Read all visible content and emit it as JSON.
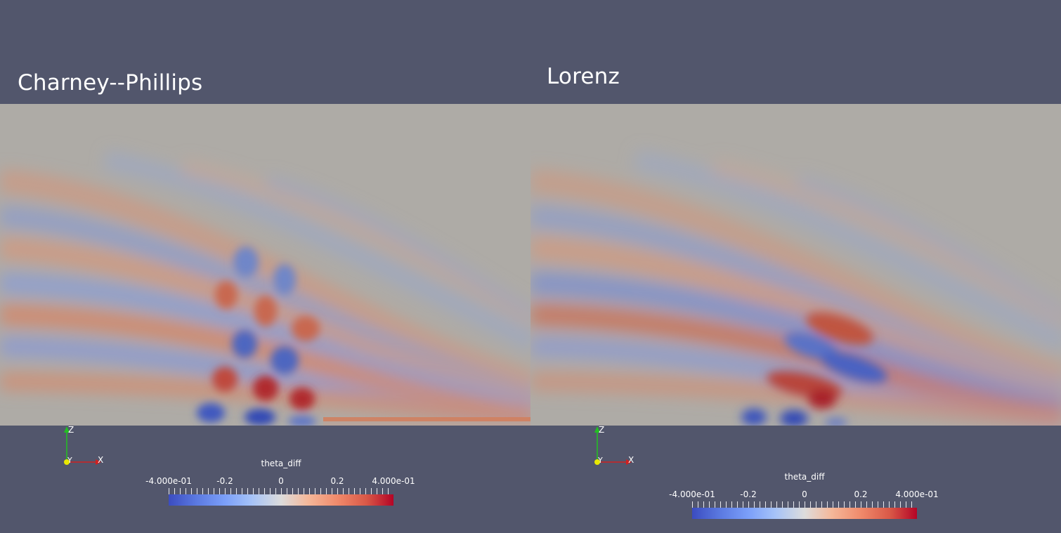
{
  "views": [
    {
      "title": "Charney--Phillips",
      "colorbar": {
        "title": "theta_diff",
        "tick_labels": [
          "-4.000e-01",
          "-0.2",
          "0",
          "0.2",
          "4.000e-01"
        ],
        "range": [
          -0.4,
          0.4
        ]
      },
      "axes": {
        "x_label": "X",
        "y_label": "Y",
        "z_label": "Z"
      }
    },
    {
      "title": "Lorenz",
      "colorbar": {
        "title": "theta_diff",
        "tick_labels": [
          "-4.000e-01",
          "-0.2",
          "0",
          "0.2",
          "4.000e-01"
        ],
        "range": [
          -0.4,
          0.4
        ]
      },
      "axes": {
        "x_label": "X",
        "y_label": "Y",
        "z_label": "Z"
      }
    }
  ],
  "colors": {
    "background": "#52566c",
    "neutral": "#aeaba6",
    "positive": "#b40426",
    "negative": "#3b4cc0"
  }
}
